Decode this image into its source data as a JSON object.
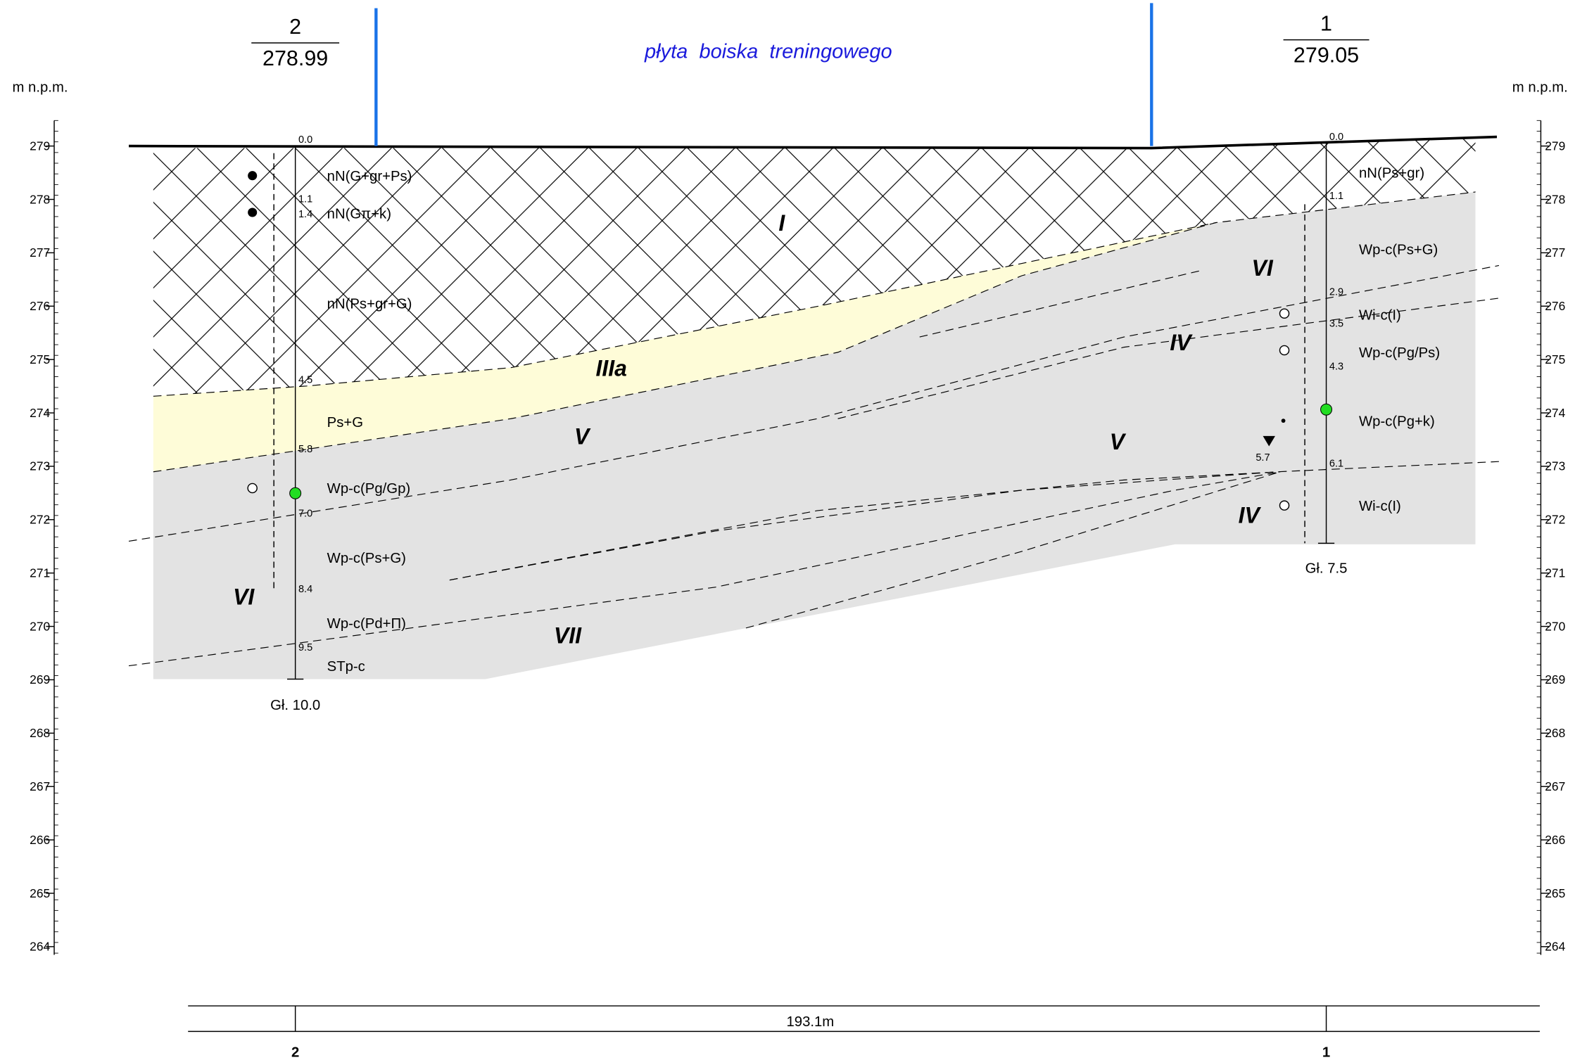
{
  "header": {
    "left_borehole": {
      "number": "2",
      "elevation": "278.99"
    },
    "right_borehole": {
      "number": "1",
      "elevation": "279.05"
    },
    "site_label": "płyta  boiska  treningowego"
  },
  "axis": {
    "unit_label": "m n.p.m.",
    "ticks": [
      279,
      278,
      277,
      276,
      275,
      274,
      273,
      272,
      271,
      270,
      269,
      268,
      267,
      266,
      265,
      264
    ]
  },
  "boreholes": [
    {
      "depths": [
        "0.0",
        "1.1",
        "1.4",
        "4.5",
        "5.8",
        "7.0",
        "8.4",
        "9.5"
      ],
      "layers": [
        "nN(G+gr+Ps)",
        "nN(Gπ+k)",
        "nN(Ps+gr+G)",
        "Ps+G",
        "Wp-c(Pg/Gp)",
        "Wp-c(Ps+G)",
        "Wp-c(Pd+Π)",
        "STp-c"
      ],
      "total_depth": "Gł. 10.0"
    },
    {
      "depths": [
        "0.0",
        "1.1",
        "2.9",
        "3.5",
        "4.3",
        "6.1"
      ],
      "layers": [
        "nN(Ps+gr)",
        "Wp-c(Ps+G)",
        "Wi-c(I)",
        "Wp-c(Pg/Ps)",
        "Wp-c(Pg+k)",
        "Wi-c(I)"
      ],
      "total_depth": "Gł. 7.5",
      "groundwater": "5.7"
    }
  ],
  "units": [
    "I",
    "IIIa",
    "V",
    "VI",
    "VII",
    "VI",
    "IV",
    "V",
    "IV"
  ],
  "distance": "193.1m",
  "footer": {
    "left": "2",
    "right": "1"
  }
}
